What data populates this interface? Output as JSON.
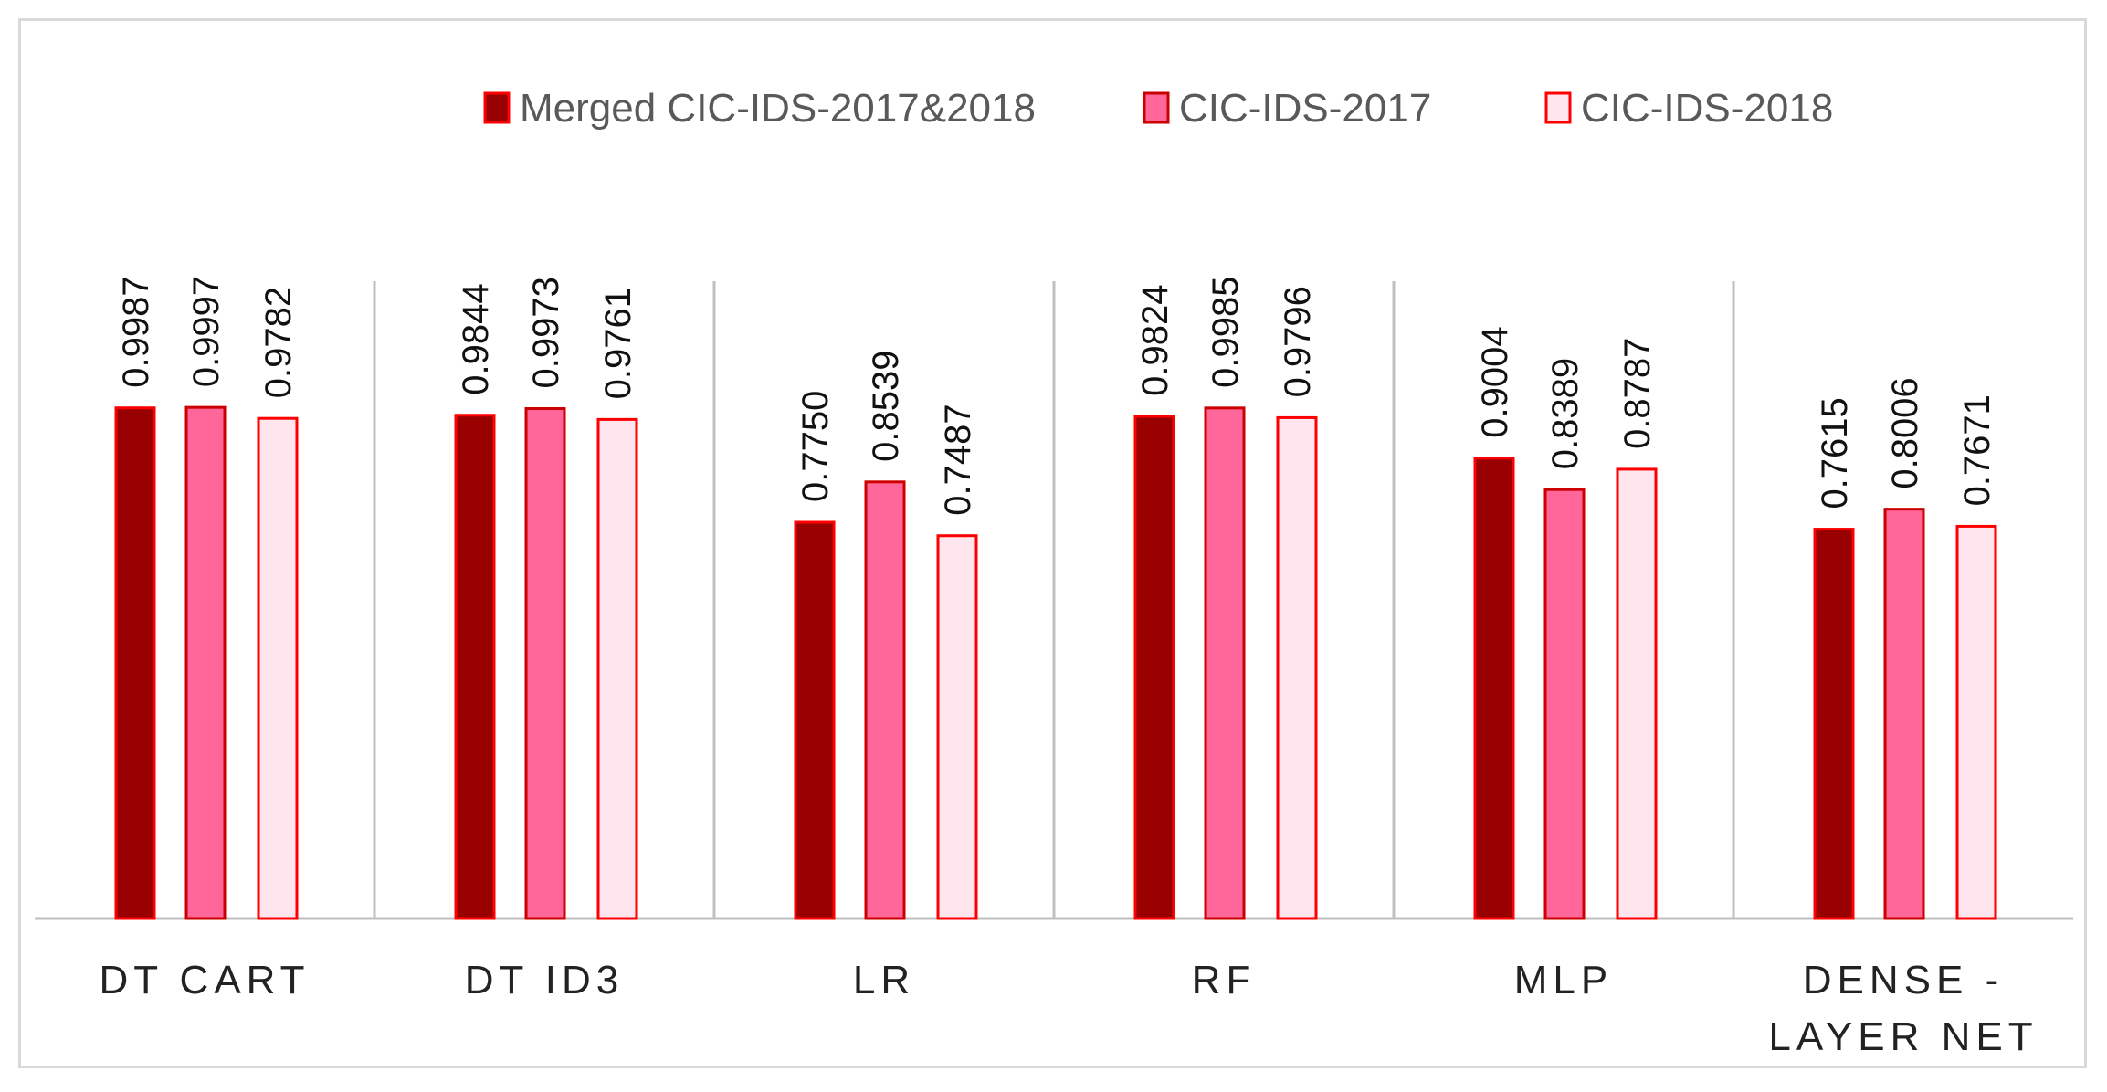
{
  "chart_data": {
    "type": "bar",
    "title": "",
    "xlabel": "",
    "ylabel": "",
    "ylim": [
      0,
      1.2
    ],
    "grid": false,
    "legend_position": "top-center",
    "categories": [
      "DT CART",
      "DT ID3",
      "LR",
      "RF",
      "MLP",
      "DENSE - LAYER NET"
    ],
    "category_lines": [
      [
        "DT CART"
      ],
      [
        "DT ID3"
      ],
      [
        "LR"
      ],
      [
        "RF"
      ],
      [
        "MLP"
      ],
      [
        "DENSE -",
        "LAYER NET"
      ]
    ],
    "series": [
      {
        "name": "Merged CIC-IDS-2017&2018",
        "values": [
          0.9987,
          0.9844,
          0.775,
          0.9824,
          0.9004,
          0.7615
        ],
        "labels": [
          "0.9987",
          "0.9844",
          "0.7750",
          "0.9824",
          "0.9004",
          "0.7615"
        ],
        "fill": "#990000",
        "stroke": "#ff0000"
      },
      {
        "name": "CIC-IDS-2017",
        "values": [
          0.9997,
          0.9973,
          0.8539,
          0.9985,
          0.8389,
          0.8006
        ],
        "labels": [
          "0.9997",
          "0.9973",
          "0.8539",
          "0.9985",
          "0.8389",
          "0.8006"
        ],
        "fill": "#ff6699",
        "stroke": "#cc0000"
      },
      {
        "name": "CIC-IDS-2018",
        "values": [
          0.9782,
          0.9761,
          0.7487,
          0.9796,
          0.8787,
          0.7671
        ],
        "labels": [
          "0.9782",
          "0.9761",
          "0.7487",
          "0.9796",
          "0.8787",
          "0.7671"
        ],
        "fill": "#ffe5ee",
        "stroke": "#ff0000"
      }
    ]
  },
  "colors": {
    "axis": "#bfbfbf",
    "frame": "#d9d9d9",
    "text": "#222222"
  }
}
